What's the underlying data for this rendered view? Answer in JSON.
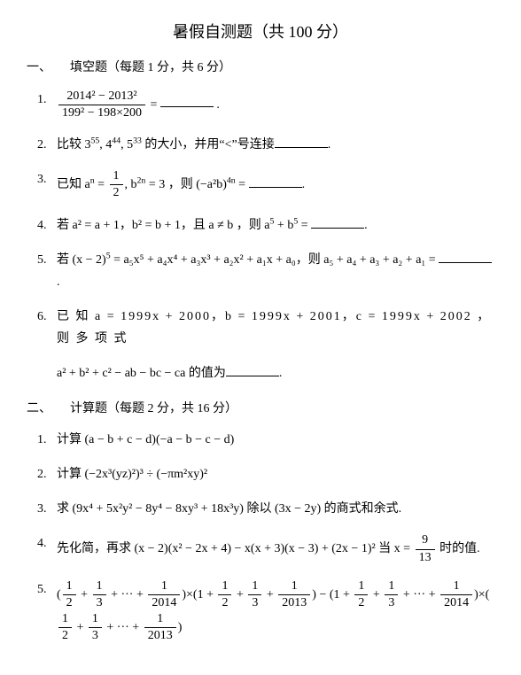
{
  "title": "暑假自测题（共 100 分）",
  "section1": {
    "header": "一、　　填空题（每题 1 分，共 6 分）",
    "p1_num": "1.",
    "p1_frac_num": "2014² − 2013²",
    "p1_frac_den": "199² − 198×200",
    "p1_eq": " = ",
    "p1_end": ".",
    "p2_num": "2.",
    "p2_a": "比较 3",
    "p2_e1": "55",
    "p2_b": ", 4",
    "p2_e2": "44",
    "p2_c": ", 5",
    "p2_e3": "33",
    "p2_d": " 的大小，并用“<”号连接",
    "p2_end": ".",
    "p3_num": "3.",
    "p3_a": "已知 a",
    "p3_e1": "n",
    "p3_b": " = ",
    "p3_fnum": "1",
    "p3_fden": "2",
    "p3_c": ", b",
    "p3_e2": "2n",
    "p3_d": " = 3 ，则 (−a²b)",
    "p3_e3": "4n",
    "p3_e": " = ",
    "p3_end": ".",
    "p4_num": "4.",
    "p4_a": "若 a² = a + 1，b² = b + 1，且 a ≠ b ，则 a",
    "p4_e1": "5",
    "p4_b": " + b",
    "p4_e2": "5",
    "p4_c": " = ",
    "p4_end": ".",
    "p5_num": "5.",
    "p5_a": "若 (x − 2)",
    "p5_e1": "5",
    "p5_b": " = a₅x⁵ + a₄x⁴ + a₃x³ + a₂x² + a₁x + a₀，则 a₅ + a₄ + a₃ + a₂ + a₁ = ",
    "p5_end": ".",
    "p6_num": "6.",
    "p6_a": "已 知 a = 1999x + 2000，b = 1999x + 2001，c = 1999x + 2002 ， 则 多 项 式",
    "p6_b": "a² + b² + c² − ab − bc − ca 的值为",
    "p6_end": "."
  },
  "section2": {
    "header": "二、　　计算题（每题 2 分，共 16 分）",
    "p1_num": "1.",
    "p1": "计算 (a − b + c − d)(−a − b − c − d)",
    "p2_num": "2.",
    "p2": "计算 (−2x³(yz)²)³ ÷ (−πm²xy)²",
    "p3_num": "3.",
    "p3": "求 (9x⁴ + 5x²y² − 8y⁴ − 8xy³ + 18x³y) 除以 (3x − 2y) 的商式和余式.",
    "p4_num": "4.",
    "p4_a": "先化简，再求 (x − 2)(x² − 2x + 4) − x(x + 3)(x − 3) + (2x − 1)² 当 x = ",
    "p4_fnum": "9",
    "p4_fden": "13",
    "p4_b": " 时的值.",
    "p5_num": "5.",
    "p5_a": "(",
    "p5_f1n": "1",
    "p5_f1d": "2",
    "p5_b": " + ",
    "p5_f2n": "1",
    "p5_f2d": "3",
    "p5_c": " + ··· + ",
    "p5_f3n": "1",
    "p5_f3d": "2014",
    "p5_d": ")×(1 + ",
    "p5_f4n": "1",
    "p5_f4d": "2",
    "p5_e": " + ",
    "p5_f5n": "1",
    "p5_f5d": "3",
    "p5_f": " + ",
    "p5_f6n": "1",
    "p5_f6d": "2013",
    "p5_g": ") − (1 + ",
    "p5_f7n": "1",
    "p5_f7d": "2",
    "p5_h": " + ",
    "p5_f8n": "1",
    "p5_f8d": "3",
    "p5_i": " + ··· + ",
    "p5_f9n": "1",
    "p5_f9d": "2014",
    "p5_j": ")×(",
    "p5_f10n": "1",
    "p5_f10d": "2",
    "p5_k": " + ",
    "p5_f11n": "1",
    "p5_f11d": "3",
    "p5_l": " + ··· + ",
    "p5_f12n": "1",
    "p5_f12d": "2013",
    "p5_m": ")"
  }
}
